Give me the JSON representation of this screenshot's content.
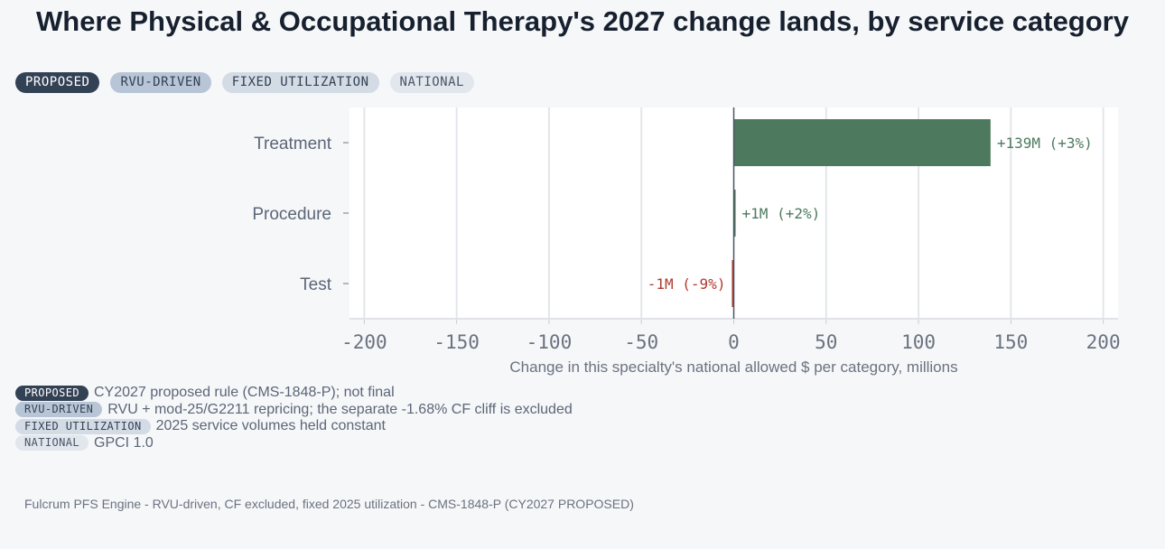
{
  "title": "Where Physical & Occupational Therapy's 2027 change lands, by service category",
  "badges": [
    "PROPOSED",
    "RVU-DRIVEN",
    "FIXED UTILIZATION",
    "NATIONAL"
  ],
  "legend": [
    {
      "badge": "PROPOSED",
      "text": "CY2027 proposed rule (CMS-1848-P); not final"
    },
    {
      "badge": "RVU-DRIVEN",
      "text": "RVU + mod-25/G2211 repricing; the separate -1.68% CF cliff is excluded"
    },
    {
      "badge": "FIXED UTILIZATION",
      "text": "2025 service volumes held constant"
    },
    {
      "badge": "NATIONAL",
      "text": "GPCI 1.0"
    }
  ],
  "footer": "Fulcrum PFS Engine - RVU-driven, CF excluded, fixed 2025 utilization - CMS-1848-P (CY2027 PROPOSED)",
  "colors": {
    "positive": "#4d7a5f",
    "negative": "#b03a2e",
    "positive_label": "#4d7a5f",
    "negative_label": "#b03a2e"
  },
  "chart_data": {
    "type": "bar",
    "orientation": "horizontal",
    "categories": [
      "Treatment",
      "Procedure",
      "Test"
    ],
    "values": [
      139,
      1,
      -1
    ],
    "data_labels": [
      "+139M  (+3%)",
      "+1M  (+2%)",
      "-1M  (-9%)"
    ],
    "xlabel": "Change in this specialty's national allowed $ per category, millions",
    "xlim": [
      -208,
      208
    ],
    "xticks": [
      -200,
      -150,
      -100,
      -50,
      0,
      50,
      100,
      150,
      200
    ],
    "xtick_labels": [
      "-200",
      "-150",
      "-100",
      "-50",
      "0",
      "50",
      "100",
      "150",
      "200"
    ],
    "grid": true
  }
}
